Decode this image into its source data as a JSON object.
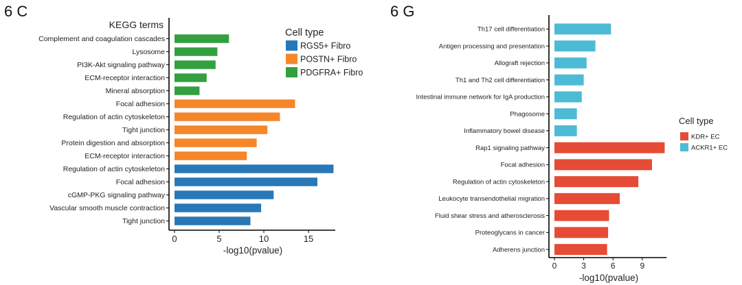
{
  "panels": {
    "left_label": "6 C",
    "right_label": "6 G"
  },
  "chart_data": [
    {
      "type": "bar",
      "orientation": "horizontal",
      "title": "KEGG terms",
      "xlabel": "-log10(pvalue)",
      "ylabel": "",
      "xlim": [
        0,
        18
      ],
      "xticks": [
        0,
        5,
        10,
        15
      ],
      "grid": false,
      "legend_title": "Cell type",
      "legend_position": "top-right",
      "legend": [
        {
          "name": "RGS5+ Fibro",
          "color": "#2878b8"
        },
        {
          "name": "POSTN+ Fibro",
          "color": "#f5862a"
        },
        {
          "name": "PDGFRA+ Fibro",
          "color": "#33a040"
        }
      ],
      "categories": [
        "Complement and coagulation cascades",
        "Lysosome",
        "PI3K-Akt signaling pathway",
        "ECM-receptor interaction",
        "Mineral absorption",
        "Focal adhesion",
        "Regulation of actin cytoskeleton",
        "Tight junction",
        "Protein digestion and absorption",
        "ECM-receptor interaction",
        "Regulation of actin cytoskeleton",
        "Focal adhesion",
        "cGMP-PKG signaling pathway",
        "Vascular smooth muscle contraction",
        "Tight junction"
      ],
      "values": [
        6.1,
        4.8,
        4.6,
        3.6,
        2.8,
        13.5,
        11.8,
        10.4,
        9.2,
        8.1,
        17.8,
        16.0,
        11.1,
        9.7,
        8.5
      ],
      "groups": [
        "PDGFRA+ Fibro",
        "PDGFRA+ Fibro",
        "PDGFRA+ Fibro",
        "PDGFRA+ Fibro",
        "PDGFRA+ Fibro",
        "POSTN+ Fibro",
        "POSTN+ Fibro",
        "POSTN+ Fibro",
        "POSTN+ Fibro",
        "POSTN+ Fibro",
        "RGS5+ Fibro",
        "RGS5+ Fibro",
        "RGS5+ Fibro",
        "RGS5+ Fibro",
        "RGS5+ Fibro"
      ]
    },
    {
      "type": "bar",
      "orientation": "horizontal",
      "title": "",
      "xlabel": "-log10(pvalue)",
      "ylabel": "",
      "xlim": [
        0,
        11.5
      ],
      "xticks": [
        0,
        3,
        6,
        9
      ],
      "grid": false,
      "legend_title": "Cell type",
      "legend_position": "right",
      "legend": [
        {
          "name": "KDR+ EC",
          "color": "#e64b35"
        },
        {
          "name": "ACKR1+ EC",
          "color": "#4dbbd5"
        }
      ],
      "categories": [
        "Th17 cell differentiation",
        "Antigen processing and presentation",
        "Allograft rejection",
        "Th1 and Th2 cell differentiation",
        "Intestinal immune network for IgA production",
        "Phagosome",
        "Inflammatory bowel disease",
        "Rap1 signaling pathway",
        "Focal adhesion",
        "Regulation of actin cytoskeleton",
        "Leukocyte transendothelial migration",
        "Fluid shear stress and atherosclerosis",
        "Proteoglycans in cancer",
        "Adherens junction"
      ],
      "values": [
        5.8,
        4.2,
        3.3,
        3.0,
        2.8,
        2.3,
        2.3,
        11.3,
        10.0,
        8.6,
        6.7,
        5.6,
        5.5,
        5.4
      ],
      "groups": [
        "ACKR1+ EC",
        "ACKR1+ EC",
        "ACKR1+ EC",
        "ACKR1+ EC",
        "ACKR1+ EC",
        "ACKR1+ EC",
        "ACKR1+ EC",
        "KDR+ EC",
        "KDR+ EC",
        "KDR+ EC",
        "KDR+ EC",
        "KDR+ EC",
        "KDR+ EC",
        "KDR+ EC"
      ]
    }
  ]
}
